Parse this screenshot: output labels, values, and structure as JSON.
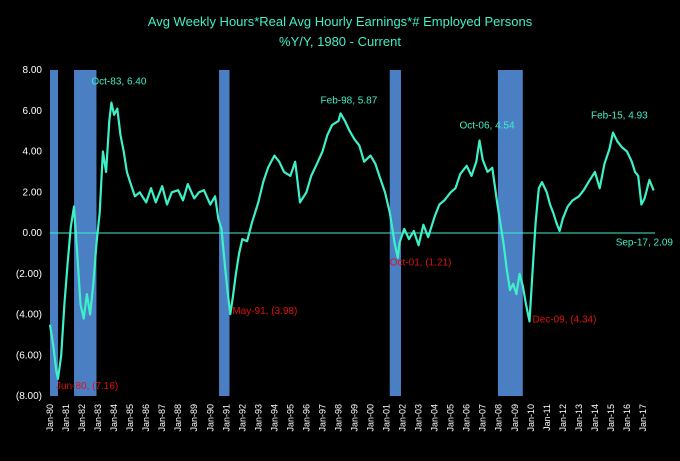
{
  "chart_data": {
    "type": "line",
    "title": "Avg Weekly Hours*Real Avg Hourly Earnings*# Employed Persons",
    "subtitle": "%Y/Y, 1980 - Current",
    "ylim": [
      -8,
      8
    ],
    "yticks": [
      "8.00",
      "6.00",
      "4.00",
      "2.00",
      "0.00",
      "(2.00)",
      "(4.00)",
      "(6.00)",
      "(8.00)"
    ],
    "ytick_values": [
      8,
      6,
      4,
      2,
      0,
      -2,
      -4,
      -6,
      -8
    ],
    "xlim": [
      1980.0,
      2017.75
    ],
    "xtick_labels": [
      "Jan-80",
      "Jan-81",
      "Jan-82",
      "Jan-83",
      "Jan-84",
      "Jan-85",
      "Jan-86",
      "Jan-87",
      "Jan-88",
      "Jan-89",
      "Jan-90",
      "Jan-91",
      "Jan-92",
      "Jan-93",
      "Jan-94",
      "Jan-95",
      "Jan-96",
      "Jan-97",
      "Jan-98",
      "Jan-99",
      "Jan-00",
      "Jan-01",
      "Jan-02",
      "Jan-03",
      "Jan-04",
      "Jan-05",
      "Jan-06",
      "Jan-07",
      "Jan-08",
      "Jan-09",
      "Jan-10",
      "Jan-11",
      "Jan-12",
      "Jan-13",
      "Jan-14",
      "Jan-15",
      "Jan-16",
      "Jan-17"
    ],
    "recessions": [
      {
        "start": 1980.0,
        "end": 1980.5
      },
      {
        "start": 1981.5,
        "end": 1982.9
      },
      {
        "start": 1990.55,
        "end": 1991.2
      },
      {
        "start": 2001.2,
        "end": 2001.9
      },
      {
        "start": 2007.95,
        "end": 2009.5
      }
    ],
    "series": [
      {
        "x": [
          1980.0,
          1980.2,
          1980.4,
          1980.5,
          1980.7,
          1980.9,
          1981.1,
          1981.3,
          1981.5,
          1981.7,
          1981.9,
          1982.1,
          1982.3,
          1982.5,
          1982.7,
          1982.9,
          1983.1,
          1983.3,
          1983.5,
          1983.7,
          1983.83,
          1984.0,
          1984.2,
          1984.4,
          1984.6,
          1984.8,
          1985.0,
          1985.3,
          1985.6,
          1986.0,
          1986.3,
          1986.6,
          1987.0,
          1987.3,
          1987.6,
          1988.0,
          1988.3,
          1988.6,
          1989.0,
          1989.3,
          1989.6,
          1990.0,
          1990.3,
          1990.5,
          1990.7,
          1990.9,
          1991.1,
          1991.25,
          1991.4,
          1991.6,
          1991.8,
          1992.0,
          1992.3,
          1992.6,
          1993.0,
          1993.3,
          1993.6,
          1994.0,
          1994.3,
          1994.6,
          1995.0,
          1995.3,
          1995.6,
          1996.0,
          1996.3,
          1996.6,
          1997.0,
          1997.3,
          1997.6,
          1998.0,
          1998.13,
          1998.4,
          1998.7,
          1999.0,
          1999.3,
          1999.6,
          2000.0,
          2000.3,
          2000.6,
          2000.9,
          2001.2,
          2001.5,
          2001.7,
          2001.8,
          2002.1,
          2002.4,
          2002.7,
          2003.0,
          2003.3,
          2003.6,
          2004.0,
          2004.3,
          2004.6,
          2005.0,
          2005.3,
          2005.6,
          2006.0,
          2006.3,
          2006.6,
          2006.8,
          2007.0,
          2007.3,
          2007.6,
          2007.9,
          2008.1,
          2008.3,
          2008.5,
          2008.7,
          2008.9,
          2009.1,
          2009.3,
          2009.5,
          2009.7,
          2009.92,
          2010.1,
          2010.3,
          2010.5,
          2010.7,
          2011.0,
          2011.2,
          2011.4,
          2011.6,
          2011.8,
          2012.0,
          2012.3,
          2012.6,
          2013.0,
          2013.3,
          2013.6,
          2014.0,
          2014.3,
          2014.6,
          2014.9,
          2015.13,
          2015.4,
          2015.7,
          2016.0,
          2016.3,
          2016.5,
          2016.7,
          2016.9,
          2017.1,
          2017.4,
          2017.67
        ],
        "values": [
          -4.5,
          -5.5,
          -6.8,
          -7.16,
          -6.0,
          -3.5,
          -1.5,
          0.3,
          1.3,
          -1.0,
          -3.5,
          -4.2,
          -3.0,
          -4.0,
          -2.5,
          -0.5,
          1.0,
          4.0,
          3.0,
          5.5,
          6.4,
          5.8,
          6.1,
          4.8,
          4.0,
          3.0,
          2.5,
          1.8,
          2.0,
          1.5,
          2.2,
          1.5,
          2.3,
          1.4,
          2.0,
          2.1,
          1.6,
          2.4,
          1.7,
          2.0,
          2.1,
          1.4,
          1.8,
          0.7,
          0.2,
          -1.5,
          -3.0,
          -3.98,
          -3.2,
          -2.0,
          -1.0,
          -0.3,
          -0.4,
          0.5,
          1.5,
          2.5,
          3.2,
          3.8,
          3.5,
          3.0,
          2.8,
          3.5,
          1.5,
          2.0,
          2.8,
          3.3,
          4.0,
          4.8,
          5.3,
          5.5,
          5.87,
          5.5,
          5.0,
          4.6,
          4.3,
          3.5,
          3.8,
          3.4,
          2.7,
          2.0,
          1.0,
          -0.5,
          -1.21,
          -0.5,
          0.2,
          -0.3,
          0.1,
          -0.6,
          0.4,
          -0.2,
          0.8,
          1.4,
          1.6,
          2.0,
          2.2,
          2.9,
          3.3,
          2.8,
          3.5,
          4.54,
          3.6,
          3.0,
          3.2,
          1.5,
          0.5,
          -0.5,
          -1.8,
          -2.8,
          -2.5,
          -3.0,
          -2.0,
          -2.6,
          -3.5,
          -4.34,
          -2.0,
          0.5,
          2.2,
          2.5,
          2.0,
          1.4,
          1.0,
          0.5,
          0.1,
          0.7,
          1.3,
          1.6,
          1.8,
          2.1,
          2.5,
          3.0,
          2.2,
          3.4,
          4.1,
          4.93,
          4.5,
          4.2,
          4.0,
          3.5,
          3.0,
          2.8,
          1.4,
          1.7,
          2.6,
          2.09
        ]
      }
    ],
    "annotations": [
      {
        "text": "Oct-83, 6.40",
        "x": 1983.83,
        "y": 6.4,
        "color": "#3ef0c8"
      },
      {
        "text": "Feb-98, 5.87",
        "x": 1998.13,
        "y": 5.87,
        "color": "#3ef0c8"
      },
      {
        "text": "Oct-06, 4.54",
        "x": 2006.8,
        "y": 4.54,
        "color": "#3ef0c8"
      },
      {
        "text": "Feb-15, 4.93",
        "x": 2015.13,
        "y": 4.93,
        "color": "#3ef0c8"
      },
      {
        "text": "Sep-17, 2.09",
        "x": 2017.67,
        "y": 2.09,
        "color": "#3ef0c8"
      },
      {
        "text": "Jun-80, (7.16)",
        "x": 1980.5,
        "y": -7.16,
        "color": "#e01010"
      },
      {
        "text": "May-91, (3.98)",
        "x": 1991.25,
        "y": -3.98,
        "color": "#e01010"
      },
      {
        "text": "Oct-01, (1.21)",
        "x": 2001.7,
        "y": -1.21,
        "color": "#e01010"
      },
      {
        "text": "Dec-09, (4.34)",
        "x": 2009.92,
        "y": -4.34,
        "color": "#e01010"
      }
    ],
    "colors": {
      "line": "#3ef0c8",
      "recession": "#4a7fc4",
      "zero_line": "#3ef0c8",
      "background": "#000000"
    },
    "grid": false,
    "legend": "none"
  }
}
